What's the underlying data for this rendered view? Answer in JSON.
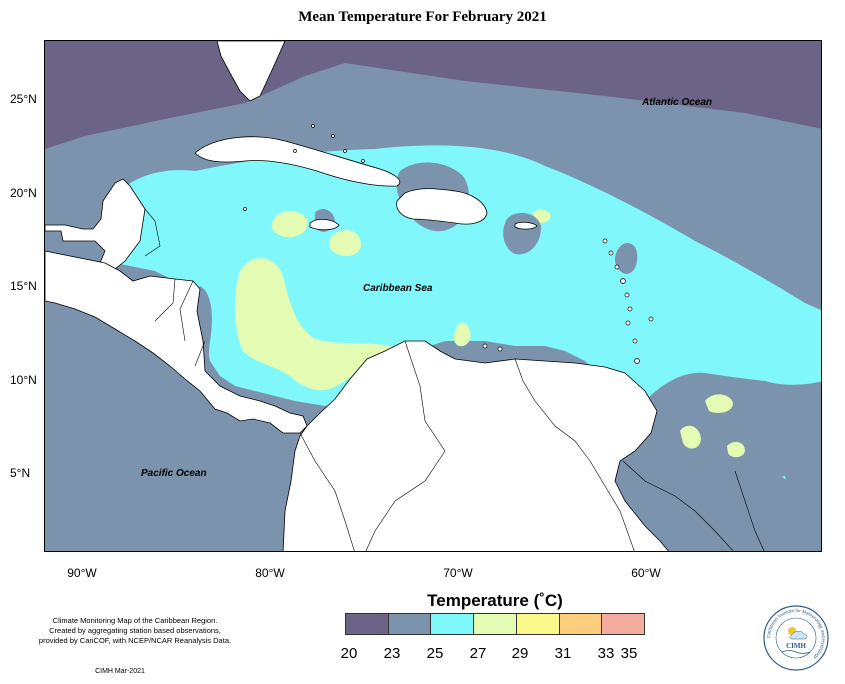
{
  "title": "Mean Temperature For February 2021",
  "map": {
    "labels": {
      "atlantic": "Atlantic Ocean",
      "caribbean": "Caribbean Sea",
      "pacific": "Pacific Ocean"
    },
    "lat_ticks": [
      "25°N",
      "20°N",
      "15°N",
      "10°N",
      "5°N"
    ],
    "lon_ticks": [
      "90°W",
      "80°W",
      "70°W",
      "60°W"
    ],
    "lon_range": [
      -92,
      -51.5
    ],
    "lat_range": [
      1.5,
      28.7
    ]
  },
  "legend": {
    "title": "Temperature (˚C)",
    "ticks": [
      "20",
      "23",
      "25",
      "27",
      "29",
      "31",
      "33",
      "35"
    ],
    "colors": [
      "#6b6487",
      "#7c93ad",
      "#7ff7fb",
      "#e4fbb4",
      "#fbf88b",
      "#fccd7d",
      "#f2ad9f"
    ]
  },
  "footnote": {
    "lines": [
      "Climate Monitoring Map of the Caribbean Region.",
      "Created by aggregating station based observations,",
      "provided by CariCOF, with NCEP/NCAR Reanalysis Data."
    ],
    "credit": "CIMH Mar-2021"
  },
  "logo": {
    "ring_text": "Caribbean Institute for Meteorology and Hydrology",
    "abbr": "CIMH"
  }
}
